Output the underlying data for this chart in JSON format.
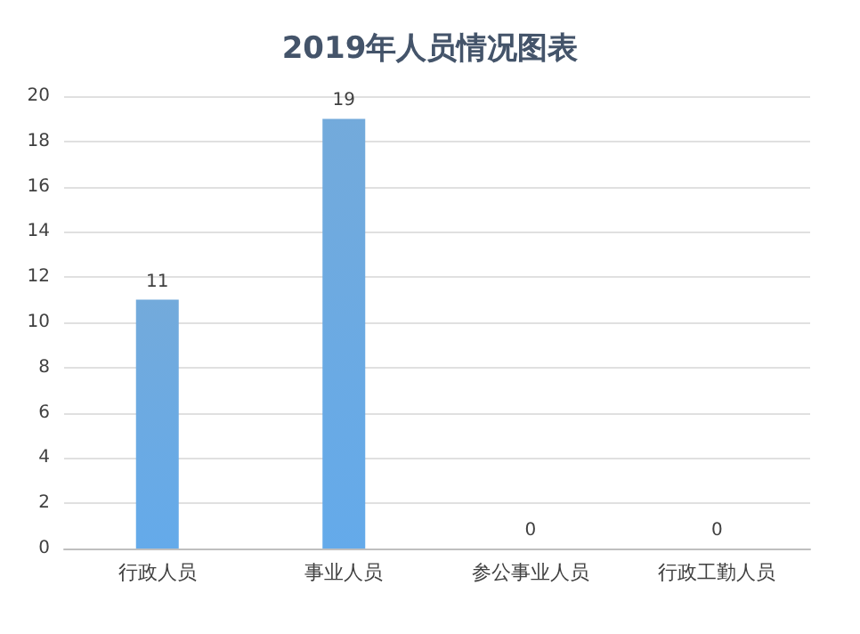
{
  "chart_data": {
    "type": "bar",
    "title": "2019年人员情况图表",
    "categories": [
      "行政人员",
      "事业人员",
      "参公事业人员",
      "行政工勤人员"
    ],
    "values": [
      11,
      19,
      0,
      0
    ],
    "color": "#5b9bd5",
    "ylim": [
      0,
      20
    ],
    "yticks": [
      0,
      2,
      4,
      6,
      8,
      10,
      12,
      14,
      16,
      18,
      20
    ],
    "grid": "y",
    "data_labels": true
  }
}
